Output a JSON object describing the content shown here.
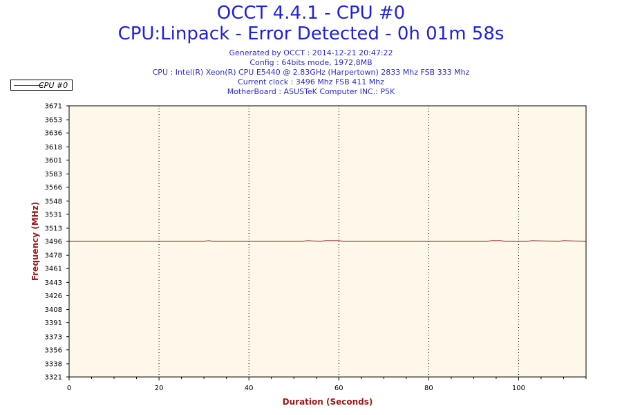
{
  "header": {
    "title": "OCCT 4.4.1 - CPU #0",
    "subtitle": "CPU:Linpack - Error Detected - 0h 01m 58s",
    "info_lines": [
      "Generated by OCCT : 2014-12-21 20:47:22",
      "Config : 64bits mode, 1972,8MB",
      "CPU : Intel(R) Xeon(R) CPU E5440 @ 2.83GHz (Harpertown) 2833 Mhz FSB 333 Mhz",
      "Current clock : 3496 Mhz FSB 411 Mhz",
      "MotherBoard : ASUSTeK Computer INC.: P5K"
    ]
  },
  "colors": {
    "plot_bg": "#fdf8e9",
    "series": "#8a1a1a",
    "axis_label": "#a01818",
    "title": "#1f1fe0"
  },
  "chart_data": {
    "type": "line",
    "title": "OCCT 4.4.1 - CPU #0",
    "xlabel": "Duration (Seconds)",
    "ylabel": "Frequency (MHz)",
    "xlim": [
      0,
      115
    ],
    "ylim": [
      3321,
      3671
    ],
    "x_ticks": [
      0,
      20,
      40,
      60,
      80,
      100
    ],
    "y_ticks": [
      3321,
      3338,
      3356,
      3373,
      3391,
      3408,
      3426,
      3443,
      3461,
      3478,
      3496,
      3513,
      3531,
      3548,
      3566,
      3583,
      3601,
      3618,
      3636,
      3653,
      3671
    ],
    "grid": "vertical dotted",
    "legend": "top-left",
    "series": [
      {
        "name": "CPU #0",
        "x": [
          0,
          30,
          31,
          32,
          36,
          37,
          46,
          47,
          52,
          53,
          56,
          57,
          60,
          61,
          93,
          94,
          96,
          97,
          102,
          103,
          109,
          110,
          115
        ],
        "values": [
          3496,
          3496,
          3497,
          3496,
          3496,
          3496,
          3496,
          3496,
          3496,
          3497,
          3496,
          3497,
          3497,
          3496,
          3496,
          3497,
          3497,
          3496,
          3496,
          3497,
          3496,
          3497,
          3496
        ]
      }
    ]
  }
}
